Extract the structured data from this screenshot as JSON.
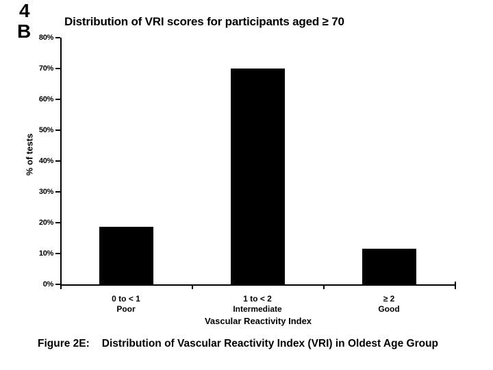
{
  "slide": {
    "number": "4",
    "panel": "B"
  },
  "chart_data": {
    "type": "bar",
    "title": "Distribution of VRI scores for participants aged ≥ 70",
    "categories": [
      "0 to < 1",
      "1 to < 2",
      "≥ 2"
    ],
    "category_sublabels": [
      "Poor",
      "Intermediate",
      "Good"
    ],
    "values": [
      18.6,
      69.8,
      11.6
    ],
    "xlabel": "Vascular Reactivity Index",
    "ylabel": "% of tests",
    "ylim": [
      0,
      80
    ],
    "ytick_step": 10,
    "yticks": [
      "0%",
      "10%",
      "20%",
      "30%",
      "40%",
      "50%",
      "60%",
      "70%",
      "80%"
    ],
    "grid": false,
    "legend": false,
    "bar_color": "#000000",
    "axis_color": "#000000",
    "background_color": "#ffffff"
  },
  "caption": {
    "prefix": "Figure 2E:",
    "text": "Distribution of Vascular Reactivity Index (VRI) in Oldest Age Group"
  }
}
